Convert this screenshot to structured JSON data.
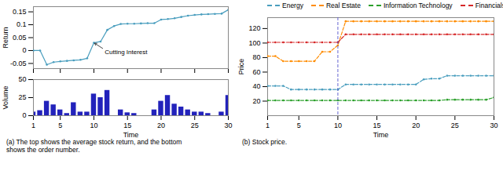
{
  "chart_data": [
    {
      "type": "line",
      "x": [
        1,
        2,
        3,
        4,
        5,
        6,
        7,
        8,
        9,
        10,
        11,
        12,
        13,
        14,
        15,
        16,
        17,
        18,
        19,
        20,
        21,
        22,
        23,
        24,
        25,
        26,
        27,
        28,
        29,
        30
      ],
      "values": [
        0.0,
        0.0,
        -0.055,
        -0.045,
        -0.042,
        -0.04,
        -0.038,
        -0.036,
        -0.03,
        0.03,
        0.035,
        0.08,
        0.095,
        0.103,
        0.104,
        0.104,
        0.105,
        0.106,
        0.106,
        0.12,
        0.122,
        0.125,
        0.13,
        0.135,
        0.138,
        0.14,
        0.141,
        0.142,
        0.143,
        0.158
      ],
      "color": "#4a9ebe",
      "marker": "dot",
      "line_style": "solid",
      "ylabel": "Return",
      "xlim": [
        1,
        30
      ],
      "xticks": [
        1,
        5,
        10,
        15,
        20,
        25,
        30
      ],
      "ylim": [
        -0.07,
        0.17
      ],
      "yticks": [
        -0.05,
        0,
        0.05,
        0.1,
        0.15
      ],
      "tick_labels": "y",
      "grid": false,
      "annotations": [
        {
          "text": "Cutting Interest",
          "x": 10,
          "y": 0.03
        }
      ]
    },
    {
      "type": "bar",
      "x": [
        1,
        2,
        3,
        4,
        5,
        6,
        7,
        8,
        9,
        10,
        11,
        12,
        14,
        15,
        16,
        19,
        20,
        21,
        22,
        23,
        24,
        25,
        26,
        27,
        29,
        30
      ],
      "values": [
        5,
        7,
        20,
        15,
        8,
        3,
        18,
        5,
        5,
        30,
        25,
        35,
        8,
        4,
        3,
        8,
        20,
        28,
        16,
        12,
        8,
        5,
        5,
        3,
        5,
        28
      ],
      "color": "#2222bb",
      "xlabel": "Time",
      "ylabel": "Volume",
      "xlim": [
        1,
        30
      ],
      "xticks": [
        1,
        5,
        10,
        15,
        20,
        25,
        30
      ],
      "ylim": [
        0,
        50
      ],
      "yticks": [
        0,
        25,
        50
      ],
      "grid": false,
      "caption": "(a) The top shows the average stock return, and the bottom\nshows the order number."
    },
    {
      "type": "line",
      "x": [
        1,
        2,
        3,
        4,
        5,
        6,
        7,
        8,
        9,
        10,
        11,
        12,
        13,
        14,
        15,
        16,
        17,
        18,
        19,
        20,
        21,
        22,
        23,
        24,
        25,
        26,
        27,
        28,
        29,
        30
      ],
      "series": [
        {
          "name": "Energy",
          "color": "#4a9ebe",
          "marker": "dot",
          "line_style": "dashed",
          "values": [
            41,
            41,
            41,
            36,
            36,
            36,
            36,
            36,
            36,
            36,
            43,
            43,
            43,
            43,
            43,
            43,
            43,
            43,
            43,
            43,
            50,
            51,
            51,
            55,
            55,
            55,
            55,
            55,
            55,
            55
          ]
        },
        {
          "name": "Real Estate",
          "color": "#ff8c00",
          "marker": "dot",
          "line_style": "dashed",
          "values": [
            82,
            82,
            75,
            75,
            75,
            75,
            75,
            88,
            88,
            97,
            130,
            130,
            130,
            130,
            130,
            130,
            130,
            130,
            130,
            130,
            130,
            130,
            130,
            130,
            130,
            130,
            130,
            130,
            130,
            130
          ]
        },
        {
          "name": "Information Technology",
          "color": "#2ca02c",
          "marker": "dot",
          "line_style": "dashed",
          "values": [
            21,
            21,
            21,
            21,
            21,
            21,
            21,
            21,
            21,
            21,
            21,
            21,
            21,
            21,
            21,
            21,
            21,
            21,
            21,
            21,
            21,
            21,
            21,
            22,
            22,
            22,
            22,
            22,
            22,
            25
          ]
        },
        {
          "name": "Financials",
          "color": "#d62728",
          "marker": "dot",
          "line_style": "dashed",
          "values": [
            101,
            101,
            101,
            101,
            101,
            101,
            101,
            101,
            101,
            101,
            112,
            112,
            112,
            112,
            112,
            112,
            112,
            112,
            112,
            112,
            112,
            112,
            112,
            112,
            112,
            112,
            112,
            112,
            112,
            112
          ]
        }
      ],
      "xlabel": "Time",
      "ylabel": "Price",
      "xlim": [
        1,
        30
      ],
      "xticks": [
        1,
        5,
        10,
        15,
        20,
        25,
        30
      ],
      "ylim": [
        0,
        135
      ],
      "yticks": [
        20,
        40,
        60,
        80,
        100,
        120
      ],
      "legend": "top",
      "grid": false,
      "vline": {
        "x": 10,
        "color": "#5555cc",
        "line_style": "dashed"
      },
      "caption": "(b) Stock price."
    }
  ]
}
